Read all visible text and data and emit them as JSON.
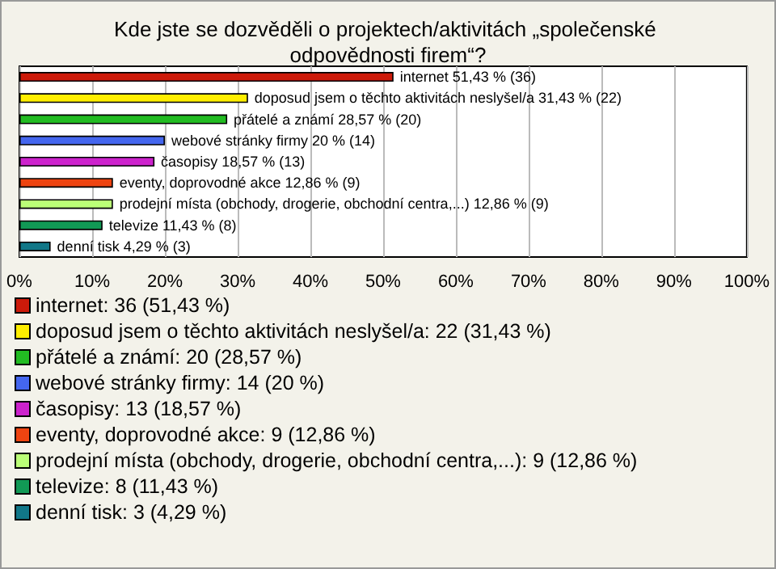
{
  "chart_data": {
    "type": "bar",
    "orientation": "horizontal",
    "title": "Kde jste se dozvěděli o projektech/aktivitách „společenské odpovědnosti firem“?",
    "categories": [
      null,
      null,
      null,
      null,
      null,
      null,
      null,
      null,
      null
    ],
    "values": [
      51.43,
      31.43,
      28.57,
      20,
      18.57,
      12.86,
      12.86,
      11.43,
      4.29
    ],
    "colors": [
      "#cc1a0a",
      "#ffee00",
      "#22bb22",
      "#4466ee",
      "#cc22cc",
      "#ee4411",
      "#bbff77",
      "#119955",
      "#117788"
    ],
    "value_labels": [
      "internet 51,43 % (36)",
      "doposud jsem o těchto aktivitách neslyšel/a 31,43 % (22)",
      "přátelé a známí 28,57 % (20)",
      "webové stránky firmy 20 % (14)",
      "časopisy 18,57 % (13)",
      "eventy, doprovodné akce 12,86 % (9)",
      "prodejní místa (obchody, drogerie, obchodní centra,...) 12,86 % (9)",
      "televize 11,43 % (8)",
      "denní tisk 4,29 % (3)"
    ],
    "xlim": [
      0,
      100
    ],
    "xticks": [
      {
        "value": 0,
        "label": "0%"
      },
      {
        "value": 10,
        "label": "10%"
      },
      {
        "value": 20,
        "label": "20%"
      },
      {
        "value": 30,
        "label": "30%"
      },
      {
        "value": 40,
        "label": "40%"
      },
      {
        "value": 50,
        "label": "50%"
      },
      {
        "value": 60,
        "label": "60%"
      },
      {
        "value": 70,
        "label": "70%"
      },
      {
        "value": 80,
        "label": "80%"
      },
      {
        "value": 90,
        "label": "90%"
      },
      {
        "value": 100,
        "label": "100%"
      }
    ],
    "grid": "x",
    "annotations": [
      "internet: 36 (51,43 %)",
      "doposud jsem o těchto aktivitách neslyšel/a: 22 (31,43 %)",
      "přátelé a známí: 20 (28,57 %)",
      "webové stránky firmy: 14 (20 %)",
      "časopisy: 13 (18,57 %)",
      "eventy, doprovodné akce: 9 (12,86 %)",
      "prodejní místa (obchody, drogerie, obchodní centra,...): 9 (12,86 %)",
      "televize: 8 (11,43 %)",
      "denní tisk: 3 (4,29 %)"
    ]
  }
}
